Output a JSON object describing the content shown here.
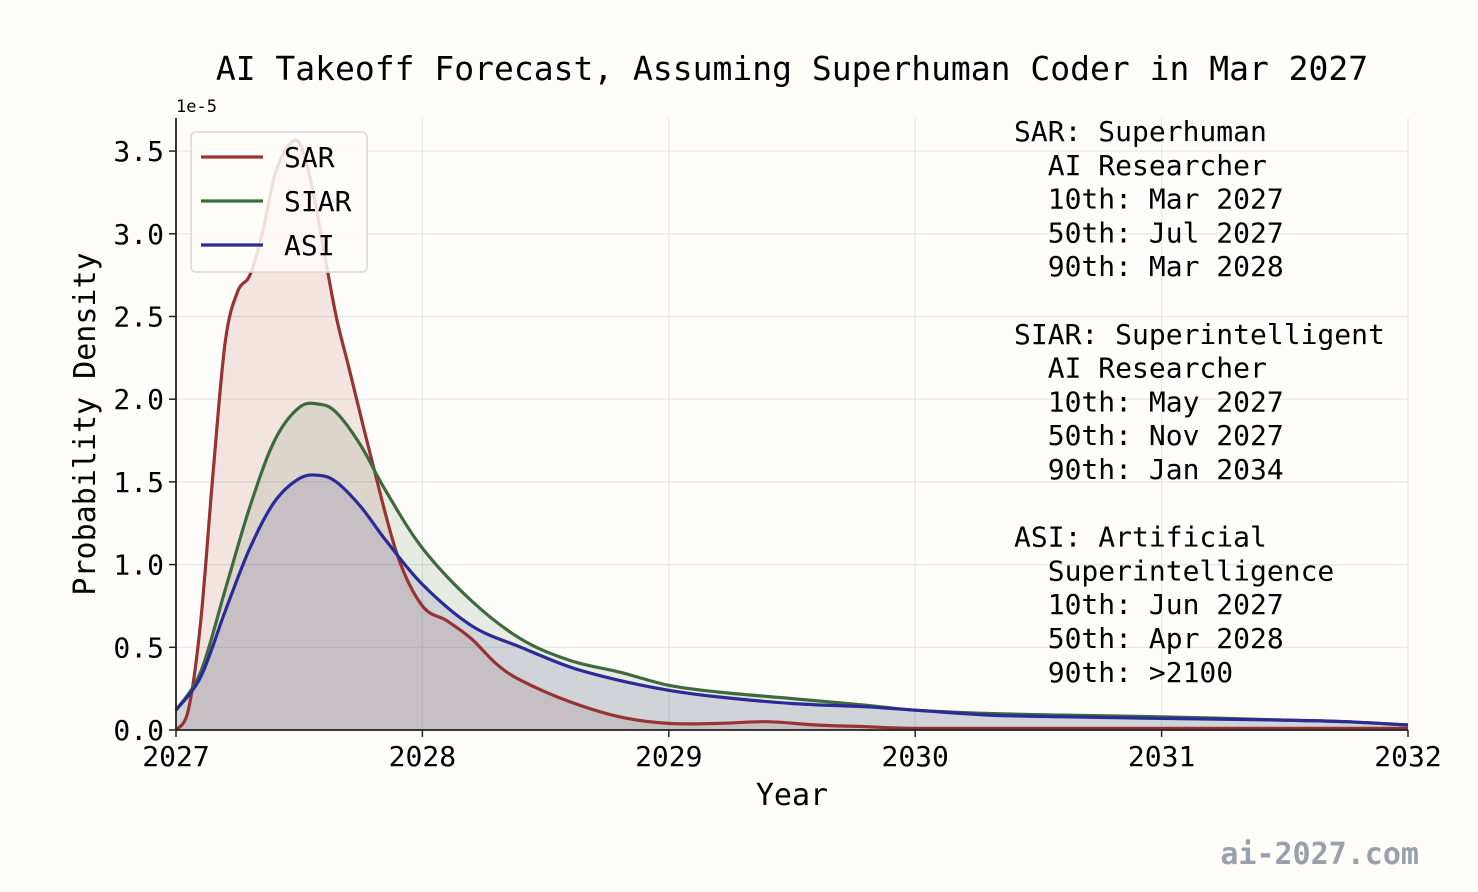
{
  "watermark": "ai-2027.com",
  "chart_data": {
    "type": "area",
    "title": "AI Takeoff Forecast, Assuming Superhuman Coder in Mar 2027",
    "xlabel": "Year",
    "ylabel": "Probability Density",
    "y_exponent_label": "1e-5",
    "xlim": [
      2027,
      2032
    ],
    "ylim": [
      0,
      3.7
    ],
    "x_ticks": [
      "2027",
      "2028",
      "2029",
      "2030",
      "2031",
      "2032"
    ],
    "y_ticks": [
      "0.0",
      "0.5",
      "1.0",
      "1.5",
      "2.0",
      "2.5",
      "3.0",
      "3.5"
    ],
    "grid": true,
    "legend_position": "top-left",
    "series": [
      {
        "name": "SAR",
        "color": "#993333",
        "x": [
          2027.0,
          2027.05,
          2027.1,
          2027.15,
          2027.2,
          2027.25,
          2027.3,
          2027.35,
          2027.4,
          2027.45,
          2027.5,
          2027.55,
          2027.6,
          2027.65,
          2027.7,
          2027.8,
          2027.9,
          2028.0,
          2028.1,
          2028.2,
          2028.3,
          2028.4,
          2028.6,
          2028.8,
          2029.0,
          2029.2,
          2029.4,
          2029.6,
          2029.8,
          2030.0,
          2030.5,
          2031.0,
          2031.5,
          2032.0
        ],
        "values": [
          0.0,
          0.12,
          0.65,
          1.55,
          2.35,
          2.65,
          2.75,
          3.0,
          3.35,
          3.52,
          3.55,
          3.3,
          2.9,
          2.5,
          2.2,
          1.6,
          1.05,
          0.75,
          0.66,
          0.55,
          0.4,
          0.3,
          0.17,
          0.08,
          0.04,
          0.04,
          0.05,
          0.03,
          0.02,
          0.01,
          0.01,
          0.01,
          0.01,
          0.01
        ]
      },
      {
        "name": "SIAR",
        "color": "#3d6b3d",
        "x": [
          2027.0,
          2027.1,
          2027.2,
          2027.3,
          2027.4,
          2027.5,
          2027.58,
          2027.65,
          2027.75,
          2027.85,
          2028.0,
          2028.2,
          2028.4,
          2028.6,
          2028.8,
          2029.0,
          2029.2,
          2029.5,
          2029.8,
          2030.0,
          2030.3,
          2030.6,
          2031.0,
          2031.5,
          2031.75,
          2032.0
        ],
        "values": [
          0.12,
          0.35,
          0.85,
          1.35,
          1.75,
          1.95,
          1.97,
          1.92,
          1.72,
          1.45,
          1.1,
          0.78,
          0.55,
          0.42,
          0.35,
          0.27,
          0.23,
          0.19,
          0.15,
          0.12,
          0.1,
          0.09,
          0.08,
          0.06,
          0.05,
          0.03
        ]
      },
      {
        "name": "ASI",
        "color": "#2a2a99",
        "x": [
          2027.0,
          2027.1,
          2027.2,
          2027.3,
          2027.4,
          2027.5,
          2027.58,
          2027.65,
          2027.75,
          2027.85,
          2028.0,
          2028.2,
          2028.4,
          2028.6,
          2028.8,
          2029.0,
          2029.2,
          2029.5,
          2029.8,
          2030.0,
          2030.3,
          2030.6,
          2031.0,
          2031.5,
          2031.75,
          2032.0
        ],
        "values": [
          0.12,
          0.32,
          0.72,
          1.1,
          1.38,
          1.52,
          1.54,
          1.5,
          1.35,
          1.15,
          0.88,
          0.63,
          0.5,
          0.38,
          0.3,
          0.24,
          0.2,
          0.16,
          0.14,
          0.12,
          0.09,
          0.08,
          0.07,
          0.06,
          0.05,
          0.03
        ]
      }
    ],
    "annotation_lines": [
      "SAR: Superhuman",
      "  AI Researcher",
      "  10th: Mar 2027",
      "  50th: Jul 2027",
      "  90th: Mar 2028",
      "",
      "SIAR: Superintelligent",
      "  AI Researcher",
      "  10th: May 2027",
      "  50th: Nov 2027",
      "  90th: Jan 2034",
      "",
      "ASI: Artificial",
      "  Superintelligence",
      "  10th: Jun 2027",
      "  50th: Apr 2028",
      "  90th: >2100"
    ]
  }
}
